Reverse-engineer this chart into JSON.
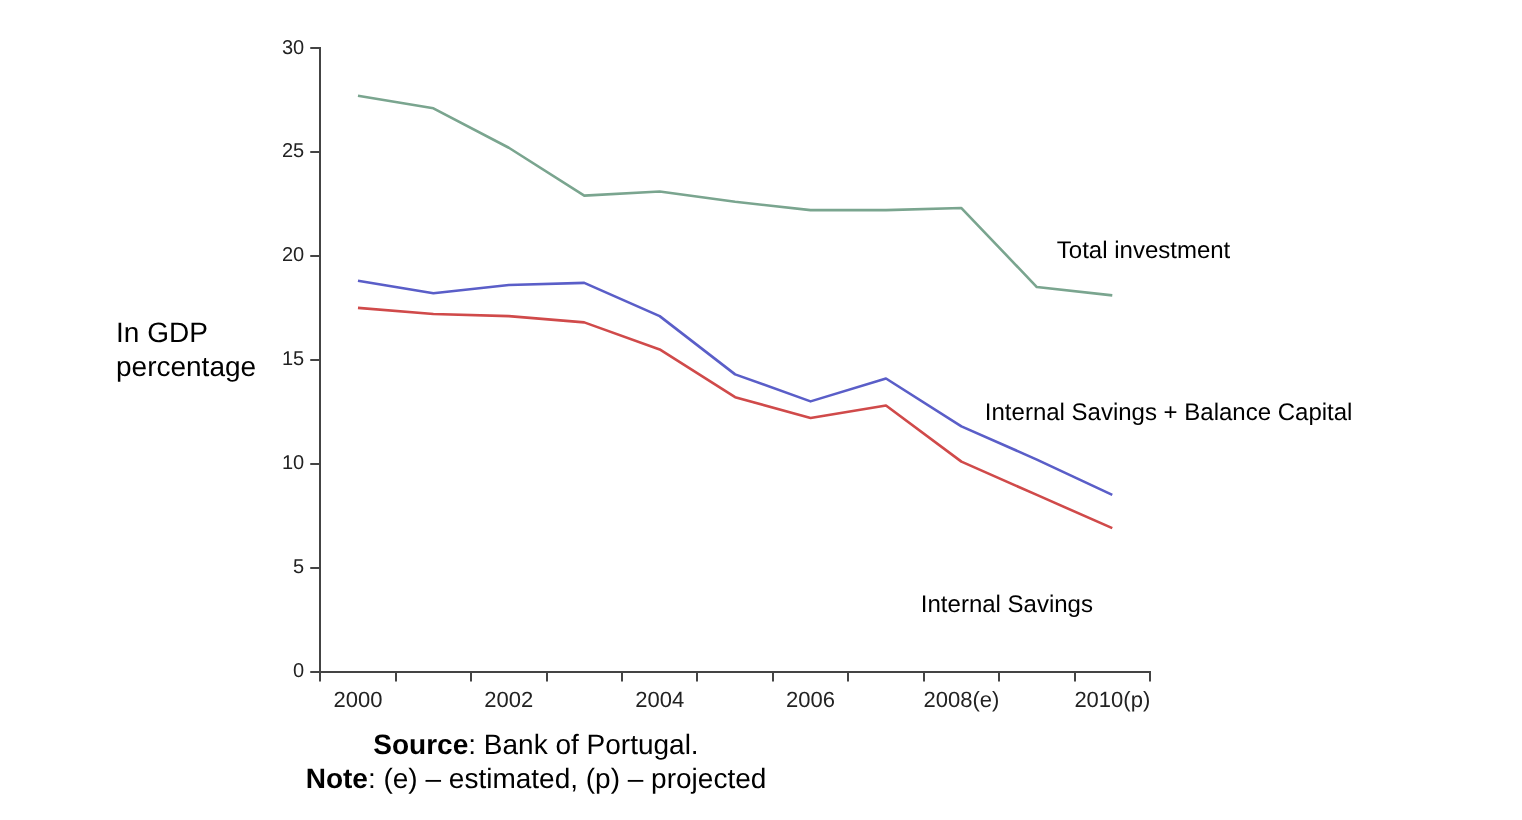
{
  "chart_data": {
    "type": "line",
    "ylabel": "In GDP percentage",
    "categories": [
      "2000",
      null,
      "2002",
      null,
      "2004",
      null,
      "2006",
      null,
      "2008(e)",
      null,
      "2010(p)"
    ],
    "series": [
      {
        "name": "Total investment",
        "color": "#7aa58f",
        "values": [
          27.7,
          27.1,
          25.2,
          22.9,
          23.1,
          22.6,
          22.2,
          22.2,
          22.3,
          18.5,
          18.1
        ]
      },
      {
        "name": "Internal Savings + Balance Capital",
        "color": "#5a5ec8",
        "values": [
          18.8,
          18.2,
          18.6,
          18.7,
          17.1,
          14.3,
          13.0,
          14.1,
          11.8,
          10.2,
          8.5
        ]
      },
      {
        "name": "Internal Savings",
        "color": "#d04a4a",
        "values": [
          17.5,
          17.2,
          17.1,
          16.8,
          15.5,
          13.2,
          12.2,
          12.8,
          10.1,
          8.5,
          6.9
        ]
      }
    ],
    "ylim": [
      0,
      30
    ],
    "yticks": [
      0,
      5,
      10,
      15,
      20,
      25,
      30
    ],
    "legend": false,
    "marker": "none",
    "line_style": "solid",
    "annotations": [
      "Source: Bank of Portugal.",
      "Note: (e) – estimated, (p) – projected"
    ]
  }
}
